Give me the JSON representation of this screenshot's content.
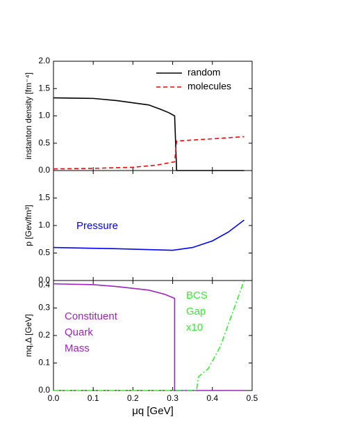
{
  "chart_data": [
    {
      "type": "line",
      "ylabel": "instanton density [fm⁻⁴]",
      "ylim": [
        0,
        2
      ],
      "yticks": [
        {
          "value": 0,
          "label": "0.0"
        },
        0.5,
        {
          "value": 1,
          "label": "1.0"
        },
        1.5,
        {
          "value": 2,
          "label": "2.0"
        }
      ],
      "legend": "upper right",
      "series": [
        {
          "name": "random",
          "color": "#000000",
          "dash": "solid",
          "x": [
            0,
            0.1,
            0.16,
            0.24,
            0.27,
            0.29,
            0.305,
            0.31,
            0.48
          ],
          "values": [
            1.33,
            1.32,
            1.28,
            1.2,
            1.12,
            1.06,
            1.0,
            0,
            0
          ]
        },
        {
          "name": "molecules",
          "color": "#ff0000",
          "dash": "dashed",
          "x": [
            0,
            0.1,
            0.2,
            0.26,
            0.305,
            0.31,
            0.4,
            0.48
          ],
          "values": [
            0.03,
            0.04,
            0.06,
            0.1,
            0.16,
            0.54,
            0.58,
            0.62
          ]
        }
      ]
    },
    {
      "type": "line",
      "ylabel": "p [Gev/fm³]",
      "ylim": [
        0,
        2
      ],
      "yticks": [
        {
          "value": 0,
          "label": "0.0"
        },
        0.5,
        {
          "value": 1,
          "label": "1.0"
        },
        1.5
      ],
      "annotations": [
        {
          "text": "Pressure",
          "color": "#0000ff"
        }
      ],
      "series": [
        {
          "color": "#0000ff",
          "dash": "solid",
          "x": [
            0,
            0.15,
            0.3,
            0.35,
            0.4,
            0.44,
            0.48
          ],
          "values": [
            0.6,
            0.58,
            0.55,
            0.6,
            0.72,
            0.88,
            1.1
          ]
        }
      ]
    },
    {
      "type": "line",
      "ylabel": "mq,Δ [GeV]",
      "xlabel": "μq [GeV]",
      "xlim": [
        0,
        0.5
      ],
      "xticks": [
        {
          "value": 0,
          "label": "0.0"
        },
        0.1,
        0.2,
        0.3,
        0.4,
        0.5
      ],
      "ylim": [
        0,
        0.4
      ],
      "yticks": [
        {
          "value": 0,
          "label": "0.0"
        },
        0.1,
        0.2,
        0.3,
        0.4
      ],
      "annotations": [
        {
          "text": "Constituent",
          "color": "#a020c0"
        },
        {
          "text": "Quark",
          "color": "#a020c0"
        },
        {
          "text": "Mass",
          "color": "#a020c0"
        },
        {
          "text": "BCS",
          "color": "#33ee33"
        },
        {
          "text": "Gap",
          "color": "#33ee33"
        },
        {
          "text": "x10",
          "color": "#33ee33"
        }
      ],
      "series": [
        {
          "color": "#a020c0",
          "dash": "solid",
          "x": [
            0,
            0.1,
            0.16,
            0.24,
            0.28,
            0.305,
            0.305,
            0.48
          ],
          "values": [
            0.388,
            0.385,
            0.378,
            0.365,
            0.35,
            0.335,
            0,
            0
          ]
        },
        {
          "color": "#33ee33",
          "dash": "dashdot",
          "x": [
            0,
            0.36,
            0.365,
            0.39,
            0.42,
            0.455,
            0.48
          ],
          "values": [
            0,
            0,
            0.05,
            0.08,
            0.16,
            0.3,
            0.4
          ]
        }
      ]
    }
  ]
}
